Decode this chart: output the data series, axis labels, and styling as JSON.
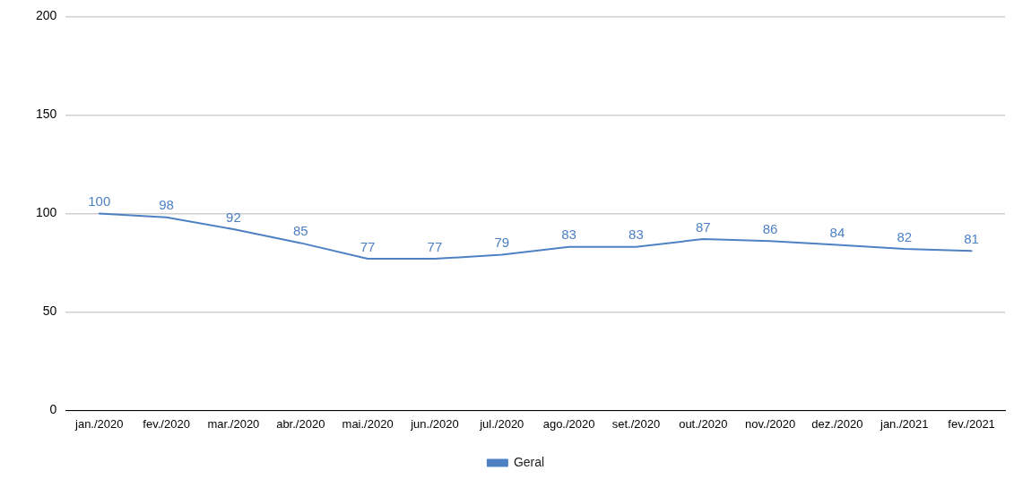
{
  "chart_data": {
    "type": "line",
    "categories": [
      "jan./2020",
      "fev./2020",
      "mar./2020",
      "abr./2020",
      "mai./2020",
      "jun./2020",
      "jul./2020",
      "ago./2020",
      "set./2020",
      "out./2020",
      "nov./2020",
      "dez./2020",
      "jan./2021",
      "fev./2021"
    ],
    "series": [
      {
        "name": "Geral",
        "color": "#4e81c4",
        "values": [
          100,
          98,
          92,
          85,
          77,
          77,
          79,
          83,
          83,
          87,
          86,
          84,
          82,
          81
        ]
      }
    ],
    "ylim": [
      0,
      200
    ],
    "yticks": [
      0,
      50,
      100,
      150,
      200
    ],
    "grid": "y",
    "legend": "bottom",
    "marker": "none",
    "line_style": "solid",
    "data_labels": true
  }
}
